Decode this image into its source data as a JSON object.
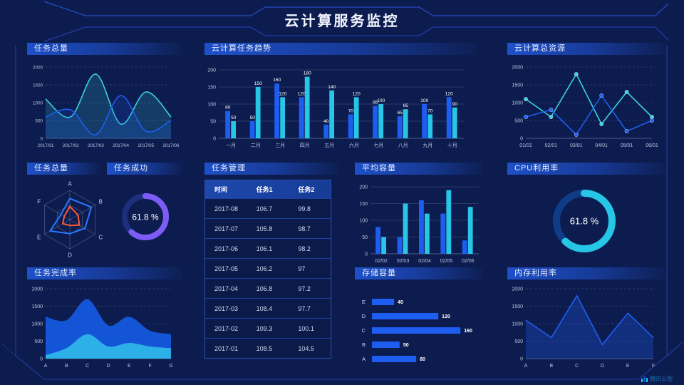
{
  "header": {
    "title": "云计算服务监控"
  },
  "brand": {
    "label": "腾讯云图"
  },
  "colors": {
    "blue": "#1d5ef0",
    "cyan": "#27c6e6",
    "teal": "#3bd2de",
    "purple": "#7d5bf6",
    "orange": "#ff5b33",
    "radarBlue": "#2979ff",
    "areaBlue": "#1459dd",
    "areaCyan": "#2db5e8",
    "gaugeTrackPurple": "#1c2f7c",
    "gaugeTrackCyan": "#0f3c86",
    "axisText": "#b9c4de",
    "frame": "#2441a8",
    "headerLine": "#2b56e0"
  },
  "panels": {
    "taskTotalLine": {
      "title": "任务总量"
    },
    "taskTrend": {
      "title": "云计算任务趋势"
    },
    "totalResources": {
      "title": "云计算总资源"
    },
    "radar": {
      "title": "任务总量"
    },
    "taskSuccess": {
      "title": "任务成功"
    },
    "taskTable": {
      "title": "任务管理"
    },
    "avgCapacity": {
      "title": "平均容量"
    },
    "cpu": {
      "title": "CPU利用率"
    },
    "completion": {
      "title": "任务完成率"
    },
    "storage": {
      "title": "存储容量"
    },
    "memory": {
      "title": "内存利用率"
    }
  },
  "table": {
    "headers": [
      "时间",
      "任务1",
      "任务2"
    ],
    "rows": [
      [
        "2017-08",
        "106.7",
        "99.8"
      ],
      [
        "2017-07",
        "105.8",
        "98.7"
      ],
      [
        "2017-06",
        "106.1",
        "98.2"
      ],
      [
        "2017-05",
        "106.2",
        "97"
      ],
      [
        "2017-04",
        "106.8",
        "97.2"
      ],
      [
        "2017-03",
        "108.4",
        "97.7"
      ],
      [
        "2017-02",
        "109.3",
        "100.1"
      ],
      [
        "2017-01",
        "108.5",
        "104.5"
      ]
    ]
  },
  "chart_data": [
    {
      "id": "taskTotalLine",
      "type": "line",
      "smooth": true,
      "area": true,
      "title": "任务总量",
      "x": [
        "2017/01",
        "2017/02",
        "2017/03",
        "2017/04",
        "2017/05",
        "2017/06"
      ],
      "ylim": [
        0,
        2000
      ],
      "yticks": [
        0,
        500,
        1000,
        1500,
        2000
      ],
      "series": [
        {
          "name": "series-cyan",
          "color": "teal",
          "values": [
            1100,
            600,
            1800,
            400,
            1300,
            600
          ]
        },
        {
          "name": "series-blue",
          "color": "blue",
          "values": [
            600,
            800,
            100,
            1200,
            200,
            500
          ]
        }
      ]
    },
    {
      "id": "taskTrend",
      "type": "bar",
      "labels": true,
      "title": "云计算任务趋势",
      "categories": [
        "一月",
        "二月",
        "三月",
        "四月",
        "五月",
        "六月",
        "七月",
        "八月",
        "九月",
        "十月"
      ],
      "ylim": [
        0,
        200
      ],
      "yticks": [
        0,
        50,
        100,
        150,
        200
      ],
      "series": [
        {
          "name": "series-blue",
          "color": "blue",
          "values": [
            80,
            50,
            160,
            120,
            40,
            70,
            95,
            65,
            100,
            120
          ]
        },
        {
          "name": "series-cyan",
          "color": "cyan",
          "values": [
            50,
            150,
            120,
            180,
            140,
            120,
            100,
            85,
            70,
            90
          ]
        }
      ]
    },
    {
      "id": "totalResources",
      "type": "line",
      "markers": true,
      "title": "云计算总资源",
      "x": [
        "01/01",
        "02/01",
        "03/01",
        "04/01",
        "05/01",
        "06/01"
      ],
      "ylim": [
        0,
        2000
      ],
      "yticks": [
        0,
        500,
        1000,
        1500,
        2000
      ],
      "series": [
        {
          "name": "series-cyan",
          "color": "teal",
          "values": [
            1100,
            600,
            1800,
            400,
            1300,
            600
          ]
        },
        {
          "name": "series-blue",
          "color": "blue",
          "values": [
            600,
            800,
            100,
            1200,
            200,
            500
          ]
        }
      ]
    },
    {
      "id": "radar",
      "type": "radar",
      "title": "任务总量",
      "axes": [
        "A",
        "B",
        "C",
        "D",
        "E",
        "F"
      ],
      "max": 100,
      "series": [
        {
          "name": "outer",
          "color": "radarBlue",
          "values": [
            72,
            85,
            60,
            48,
            78,
            35
          ]
        },
        {
          "name": "inner",
          "color": "orange",
          "values": [
            45,
            32,
            38,
            20,
            28,
            22
          ]
        }
      ]
    },
    {
      "id": "taskSuccess",
      "type": "gauge",
      "title": "任务成功",
      "value": 61.8,
      "unit": "%",
      "color": "purple",
      "track": "gaugeTrackPurple"
    },
    {
      "id": "avgCapacity",
      "type": "bar",
      "labels": false,
      "title": "平均容量",
      "categories": [
        "02/02",
        "02/03",
        "02/04",
        "02/05",
        "02/06"
      ],
      "ylim": [
        0,
        200
      ],
      "yticks": [
        0,
        50,
        100,
        150,
        200
      ],
      "series": [
        {
          "name": "series-blue",
          "color": "blue",
          "values": [
            80,
            50,
            160,
            120,
            40
          ]
        },
        {
          "name": "series-cyan",
          "color": "cyan",
          "values": [
            50,
            150,
            120,
            190,
            140
          ]
        }
      ]
    },
    {
      "id": "cpu",
      "type": "gauge",
      "title": "CPU利用率",
      "value": 61.8,
      "unit": "%",
      "color": "cyan",
      "track": "gaugeTrackCyan"
    },
    {
      "id": "completion",
      "type": "area",
      "title": "任务完成率",
      "x": [
        "A",
        "B",
        "C",
        "D",
        "E",
        "F",
        "G"
      ],
      "ylim": [
        0,
        2000
      ],
      "yticks": [
        0,
        500,
        1000,
        1500,
        2000
      ],
      "series": [
        {
          "name": "blue-band",
          "color": "areaBlue",
          "values": [
            1200,
            1100,
            1700,
            950,
            1200,
            800,
            700
          ]
        },
        {
          "name": "cyan-band",
          "color": "areaCyan",
          "values": [
            100,
            300,
            700,
            350,
            450,
            350,
            300
          ]
        }
      ]
    },
    {
      "id": "storage",
      "type": "hbar",
      "title": "存储容量",
      "categories": [
        "E",
        "D",
        "C",
        "B",
        "A"
      ],
      "values": [
        40,
        120,
        160,
        50,
        80
      ],
      "xmax": 170,
      "color": "blue"
    },
    {
      "id": "memory",
      "type": "line",
      "area": true,
      "areaOpacity": 0.3,
      "title": "内存利用率",
      "x": [
        "A",
        "B",
        "C",
        "D",
        "E",
        "F"
      ],
      "ylim": [
        0,
        2000
      ],
      "yticks": [
        0,
        500,
        1000,
        1500,
        2000
      ],
      "series": [
        {
          "name": "series-blue",
          "color": "blue",
          "values": [
            1100,
            600,
            1800,
            400,
            1300,
            600
          ]
        }
      ]
    }
  ]
}
